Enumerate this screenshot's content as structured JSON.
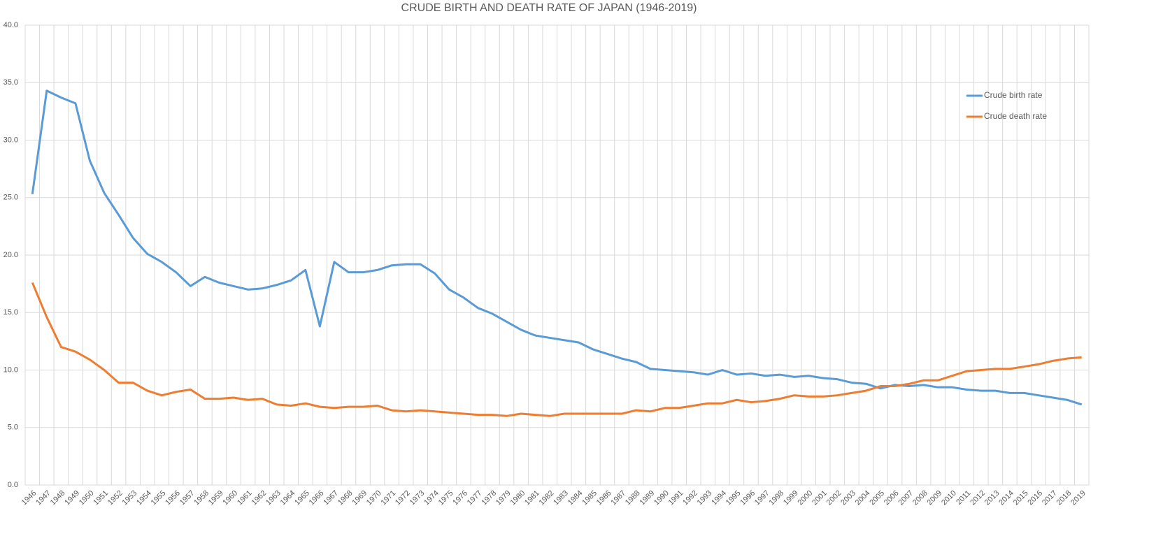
{
  "chart_data": {
    "type": "line",
    "title": "CRUDE BIRTH AND DEATH RATE OF JAPAN (1946-2019)",
    "categories": [
      "1946",
      "1947",
      "1948",
      "1949",
      "1950",
      "1951",
      "1952",
      "1953",
      "1954",
      "1955",
      "1956",
      "1957",
      "1958",
      "1959",
      "1960",
      "1961",
      "1962",
      "1963",
      "1964",
      "1965",
      "1966",
      "1967",
      "1968",
      "1969",
      "1970",
      "1971",
      "1972",
      "1973",
      "1974",
      "1975",
      "1976",
      "1977",
      "1978",
      "1979",
      "1980",
      "1981",
      "1982",
      "1983",
      "1984",
      "1985",
      "1986",
      "1987",
      "1988",
      "1989",
      "1990",
      "1991",
      "1992",
      "1993",
      "1994",
      "1995",
      "1996",
      "1997",
      "1998",
      "1999",
      "2000",
      "2001",
      "2002",
      "2003",
      "2004",
      "2005",
      "2006",
      "2007",
      "2008",
      "2009",
      "2010",
      "2011",
      "2012",
      "2013",
      "2014",
      "2015",
      "2016",
      "2017",
      "2018",
      "2019"
    ],
    "series": [
      {
        "name": "Crude birth rate",
        "color": "#5b9bd5",
        "values": [
          25.3,
          34.3,
          33.7,
          33.2,
          28.2,
          25.4,
          23.5,
          21.5,
          20.1,
          19.4,
          18.5,
          17.3,
          18.1,
          17.6,
          17.3,
          17.0,
          17.1,
          17.4,
          17.8,
          18.7,
          13.8,
          19.4,
          18.5,
          18.5,
          18.7,
          19.1,
          19.2,
          19.2,
          18.4,
          17.0,
          16.3,
          15.4,
          14.9,
          14.2,
          13.5,
          13.0,
          12.8,
          12.6,
          12.4,
          11.8,
          11.4,
          11.0,
          10.7,
          10.1,
          10.0,
          9.9,
          9.8,
          9.6,
          10.0,
          9.6,
          9.7,
          9.5,
          9.6,
          9.4,
          9.5,
          9.3,
          9.2,
          8.9,
          8.8,
          8.4,
          8.7,
          8.6,
          8.7,
          8.5,
          8.5,
          8.3,
          8.2,
          8.2,
          8.0,
          8.0,
          7.8,
          7.6,
          7.4,
          7.0
        ]
      },
      {
        "name": "Crude death rate",
        "color": "#ed7d31",
        "values": [
          17.6,
          14.6,
          12.0,
          11.6,
          10.9,
          10.0,
          8.9,
          8.9,
          8.2,
          7.8,
          8.1,
          8.3,
          7.5,
          7.5,
          7.6,
          7.4,
          7.5,
          7.0,
          6.9,
          7.1,
          6.8,
          6.7,
          6.8,
          6.8,
          6.9,
          6.5,
          6.4,
          6.5,
          6.4,
          6.3,
          6.2,
          6.1,
          6.1,
          6.0,
          6.2,
          6.1,
          6.0,
          6.2,
          6.2,
          6.2,
          6.2,
          6.2,
          6.5,
          6.4,
          6.7,
          6.7,
          6.9,
          7.1,
          7.1,
          7.4,
          7.2,
          7.3,
          7.5,
          7.8,
          7.7,
          7.7,
          7.8,
          8.0,
          8.2,
          8.6,
          8.6,
          8.8,
          9.1,
          9.1,
          9.5,
          9.9,
          10.0,
          10.1,
          10.1,
          10.3,
          10.5,
          10.8,
          11.0,
          11.1
        ]
      }
    ],
    "ylim": [
      0,
      40
    ],
    "yticks": [
      {
        "value": 0,
        "label": "0.0"
      },
      {
        "value": 5,
        "label": "5.0"
      },
      {
        "value": 10,
        "label": "10.0"
      },
      {
        "value": 15,
        "label": "15.0"
      },
      {
        "value": 20,
        "label": "20.0"
      },
      {
        "value": 25,
        "label": "25.0"
      },
      {
        "value": 30,
        "label": "30.0"
      },
      {
        "value": 35,
        "label": "35.0"
      },
      {
        "value": 40,
        "label": "40.0"
      }
    ],
    "grid": true,
    "legend": "upper right"
  }
}
